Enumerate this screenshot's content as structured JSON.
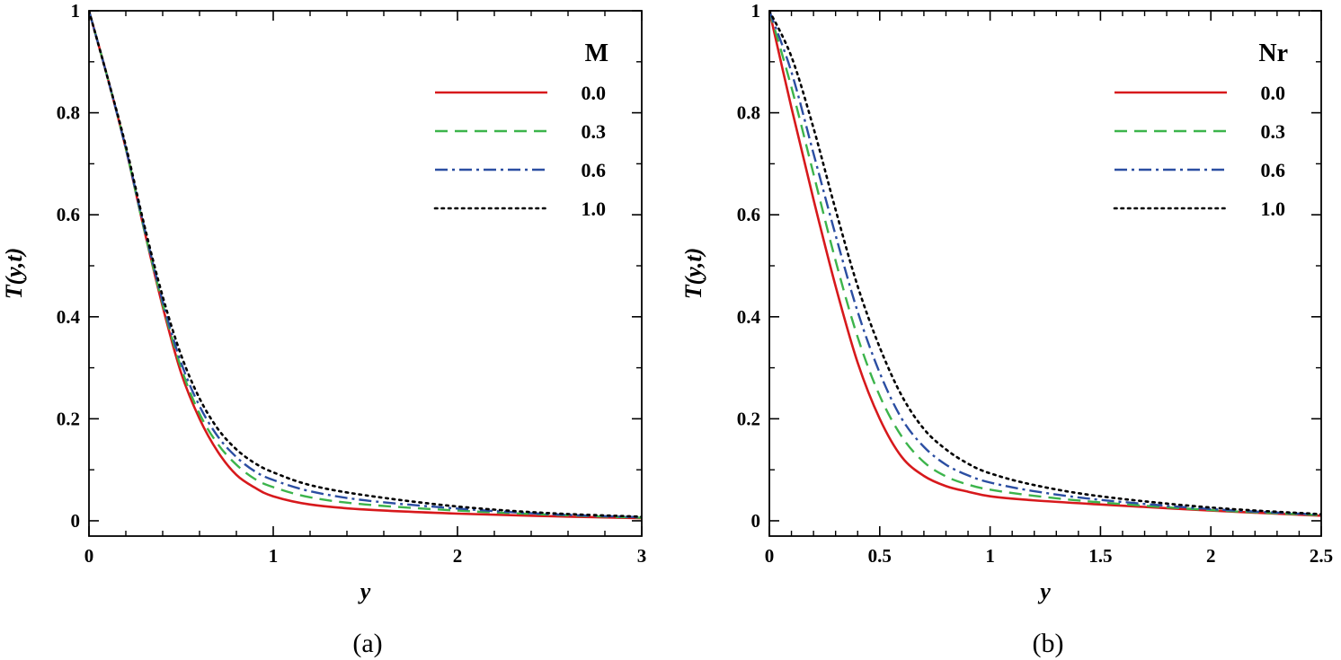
{
  "chart_data": [
    {
      "type": "line",
      "panel_caption": "(a)",
      "xlabel": "y",
      "ylabel": "T(y,t)",
      "xlim": [
        0,
        3
      ],
      "ylim": [
        -0.03,
        1
      ],
      "x_ticks": [
        0,
        1,
        2,
        3
      ],
      "x_tick_labels": [
        "0",
        "1",
        "2",
        "3"
      ],
      "x_minor_step": 0.2,
      "y_ticks": [
        0,
        0.2,
        0.4,
        0.6,
        0.8,
        1
      ],
      "y_tick_labels": [
        "0",
        "0.2",
        "0.4",
        "0.6",
        "0.8",
        "1"
      ],
      "y_minor_step": 0.1,
      "legend_title": "M",
      "legend_position": "top-right",
      "series": [
        {
          "name": "0.0",
          "color": "#d7191c",
          "style": "solid",
          "x": [
            0,
            0.1,
            0.2,
            0.3,
            0.4,
            0.5,
            0.6,
            0.7,
            0.8,
            0.9,
            1.0,
            1.2,
            1.5,
            2.0,
            2.5,
            3.0
          ],
          "y": [
            1.0,
            0.87,
            0.73,
            0.57,
            0.42,
            0.29,
            0.2,
            0.135,
            0.09,
            0.065,
            0.048,
            0.032,
            0.022,
            0.014,
            0.009,
            0.005
          ]
        },
        {
          "name": "0.3",
          "color": "#3cb44b",
          "style": "dashed",
          "x": [
            0,
            0.1,
            0.2,
            0.3,
            0.4,
            0.5,
            0.6,
            0.7,
            0.8,
            0.9,
            1.0,
            1.2,
            1.5,
            2.0,
            2.5,
            3.0
          ],
          "y": [
            1.0,
            0.87,
            0.73,
            0.57,
            0.425,
            0.3,
            0.21,
            0.15,
            0.11,
            0.082,
            0.066,
            0.046,
            0.032,
            0.02,
            0.012,
            0.006
          ]
        },
        {
          "name": "0.6",
          "color": "#2b4ea2",
          "style": "dashdot",
          "x": [
            0,
            0.1,
            0.2,
            0.3,
            0.4,
            0.5,
            0.6,
            0.7,
            0.8,
            0.9,
            1.0,
            1.2,
            1.5,
            2.0,
            2.5,
            3.0
          ],
          "y": [
            1.0,
            0.87,
            0.73,
            0.575,
            0.43,
            0.31,
            0.225,
            0.165,
            0.125,
            0.097,
            0.08,
            0.058,
            0.04,
            0.024,
            0.013,
            0.007
          ]
        },
        {
          "name": "1.0",
          "color": "#000000",
          "style": "dotted",
          "x": [
            0,
            0.1,
            0.2,
            0.3,
            0.4,
            0.5,
            0.6,
            0.7,
            0.8,
            0.9,
            1.0,
            1.2,
            1.5,
            2.0,
            2.5,
            3.0
          ],
          "y": [
            1.0,
            0.87,
            0.735,
            0.58,
            0.44,
            0.325,
            0.24,
            0.18,
            0.14,
            0.113,
            0.095,
            0.07,
            0.05,
            0.028,
            0.015,
            0.008
          ]
        }
      ]
    },
    {
      "type": "line",
      "panel_caption": "(b)",
      "xlabel": "y",
      "ylabel": "T(y,t)",
      "xlim": [
        0,
        2.5
      ],
      "ylim": [
        -0.03,
        1
      ],
      "x_ticks": [
        0,
        0.5,
        1,
        1.5,
        2,
        2.5
      ],
      "x_tick_labels": [
        "0",
        "0.5",
        "1",
        "1.5",
        "2",
        "2.5"
      ],
      "x_minor_step": 0.1,
      "y_ticks": [
        0,
        0.2,
        0.4,
        0.6,
        0.8,
        1
      ],
      "y_tick_labels": [
        "0",
        "0.2",
        "0.4",
        "0.6",
        "0.8",
        "1"
      ],
      "y_minor_step": 0.1,
      "legend_title": "Nr",
      "legend_position": "top-right",
      "series": [
        {
          "name": "0.0",
          "color": "#d7191c",
          "style": "solid",
          "x": [
            0,
            0.1,
            0.2,
            0.3,
            0.4,
            0.5,
            0.6,
            0.7,
            0.8,
            0.9,
            1.0,
            1.2,
            1.5,
            2.0,
            2.5
          ],
          "y": [
            1.0,
            0.81,
            0.63,
            0.46,
            0.31,
            0.2,
            0.125,
            0.088,
            0.068,
            0.057,
            0.048,
            0.04,
            0.032,
            0.02,
            0.01
          ]
        },
        {
          "name": "0.3",
          "color": "#3cb44b",
          "style": "dashed",
          "x": [
            0,
            0.1,
            0.2,
            0.3,
            0.4,
            0.5,
            0.6,
            0.7,
            0.8,
            0.9,
            1.0,
            1.2,
            1.5,
            2.0,
            2.5
          ],
          "y": [
            1.0,
            0.85,
            0.68,
            0.51,
            0.36,
            0.245,
            0.165,
            0.115,
            0.087,
            0.071,
            0.061,
            0.049,
            0.036,
            0.021,
            0.011
          ]
        },
        {
          "name": "0.6",
          "color": "#2b4ea2",
          "style": "dashdot",
          "x": [
            0,
            0.1,
            0.2,
            0.3,
            0.4,
            0.5,
            0.6,
            0.7,
            0.8,
            0.9,
            1.0,
            1.2,
            1.5,
            2.0,
            2.5
          ],
          "y": [
            1.0,
            0.88,
            0.72,
            0.56,
            0.41,
            0.29,
            0.2,
            0.145,
            0.11,
            0.089,
            0.075,
            0.058,
            0.041,
            0.023,
            0.012
          ]
        },
        {
          "name": "1.0",
          "color": "#000000",
          "style": "dotted",
          "x": [
            0,
            0.1,
            0.2,
            0.3,
            0.4,
            0.5,
            0.6,
            0.7,
            0.8,
            0.9,
            1.0,
            1.2,
            1.5,
            2.0,
            2.5
          ],
          "y": [
            1.0,
            0.91,
            0.77,
            0.61,
            0.46,
            0.34,
            0.245,
            0.18,
            0.14,
            0.112,
            0.093,
            0.07,
            0.048,
            0.026,
            0.013
          ]
        }
      ]
    }
  ]
}
